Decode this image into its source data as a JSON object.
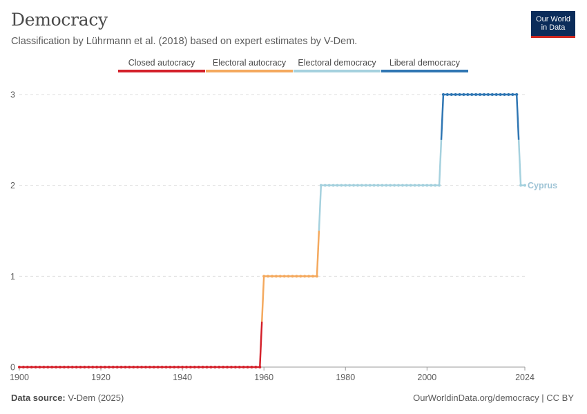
{
  "header": {
    "title": "Democracy",
    "subtitle": "Classification by Lührmann et al. (2018) based on expert estimates by V-Dem."
  },
  "logo": {
    "line1": "Our World",
    "line2": "in Data"
  },
  "footer": {
    "source_label": "Data source:",
    "source_value": "V-Dem (2025)",
    "link": "OurWorldinData.org/democracy | CC BY"
  },
  "chart_data": {
    "type": "line",
    "title": "Democracy",
    "subtitle": "Classification by Lührmann et al. (2018) based on expert estimates by V-Dem.",
    "xlabel": "",
    "ylabel": "",
    "xlim": [
      1900,
      2024
    ],
    "ylim": [
      0,
      3
    ],
    "x_ticks": [
      "1900",
      "1920",
      "1940",
      "1960",
      "1980",
      "2000",
      "2024"
    ],
    "y_ticks": [
      "0",
      "1",
      "2",
      "3"
    ],
    "grid": "horizontal dashed",
    "legend_position": "top",
    "categories": [
      {
        "value": 0,
        "label": "Closed autocracy",
        "color": "#d4202a"
      },
      {
        "value": 1,
        "label": "Electoral autocracy",
        "color": "#f4a95e"
      },
      {
        "value": 2,
        "label": "Electoral democracy",
        "color": "#a5d1de"
      },
      {
        "value": 3,
        "label": "Liberal democracy",
        "color": "#2f76b3"
      }
    ],
    "series": [
      {
        "name": "Cyprus",
        "label_color": "#9fc4d6",
        "segments": [
          {
            "from": 1900,
            "to": 1959,
            "value": 0
          },
          {
            "from": 1960,
            "to": 1973,
            "value": 1
          },
          {
            "from": 1974,
            "to": 2003,
            "value": 2
          },
          {
            "from": 2004,
            "to": 2022,
            "value": 3
          },
          {
            "from": 2023,
            "to": 2024,
            "value": 2
          }
        ]
      }
    ]
  }
}
